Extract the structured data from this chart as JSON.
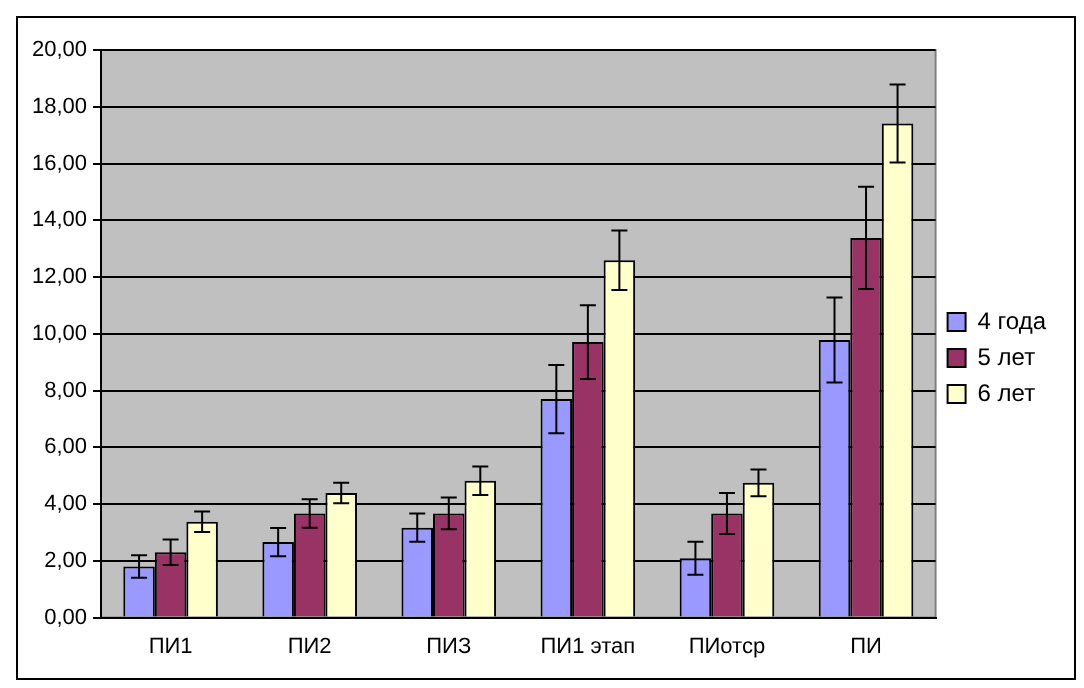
{
  "chart_data": {
    "type": "bar",
    "categories": [
      "ПИ1",
      "ПИ2",
      "ПИЗ",
      "ПИ1 этап",
      "ПИотср",
      "ПИ"
    ],
    "series": [
      {
        "name": "4 года",
        "color": "#9999ff",
        "values": [
          1.8,
          2.66,
          3.17,
          7.7,
          2.09,
          9.78
        ],
        "errors": [
          0.4,
          0.5,
          0.5,
          1.2,
          0.58,
          1.5
        ]
      },
      {
        "name": "5 лет",
        "color": "#993366",
        "values": [
          2.3,
          3.67,
          3.67,
          9.71,
          3.67,
          13.38
        ],
        "errors": [
          0.45,
          0.5,
          0.56,
          1.3,
          0.72,
          1.8
        ]
      },
      {
        "name": "6 лет",
        "color": "#ffffcc",
        "values": [
          3.38,
          4.39,
          4.82,
          12.59,
          4.75,
          17.41
        ],
        "errors": [
          0.36,
          0.36,
          0.5,
          1.05,
          0.47,
          1.37
        ]
      }
    ],
    "ylim": [
      0,
      20
    ],
    "yticks": [
      {
        "value": 0,
        "label": "0,00"
      },
      {
        "value": 2,
        "label": "2,00"
      },
      {
        "value": 4,
        "label": "4,00"
      },
      {
        "value": 6,
        "label": "6,00"
      },
      {
        "value": 8,
        "label": "8,00"
      },
      {
        "value": 10,
        "label": "10,00"
      },
      {
        "value": 12,
        "label": "12,00"
      },
      {
        "value": 14,
        "label": "14,00"
      },
      {
        "value": 16,
        "label": "16,00"
      },
      {
        "value": 18,
        "label": "18,00"
      },
      {
        "value": 20,
        "label": "20,00"
      }
    ],
    "grid": "y",
    "legend": "right"
  }
}
